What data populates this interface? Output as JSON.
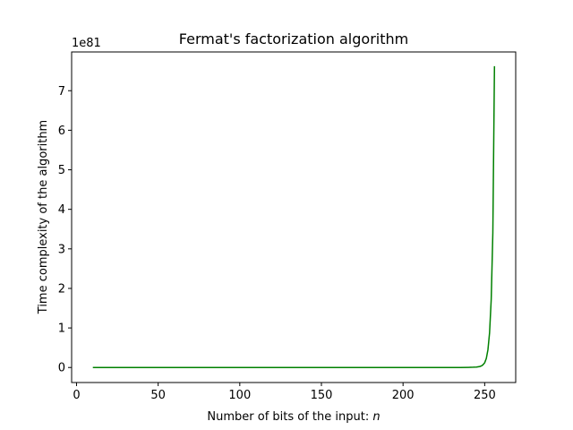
{
  "chart_data": {
    "type": "line",
    "title": "Fermat's factorization algorithm",
    "xlabel_text": "Number of bits of the input: ",
    "xlabel_var": "n",
    "ylabel": "Time complexity of the algorithm",
    "y_offset_label": "1e81",
    "xlim": [
      -3,
      269
    ],
    "ylim": [
      -0.38,
      7.98
    ],
    "x_ticks": [
      0,
      50,
      100,
      150,
      200,
      250
    ],
    "x_tick_labels": [
      "0",
      "50",
      "100",
      "150",
      "200",
      "250"
    ],
    "y_ticks": [
      0,
      1,
      2,
      3,
      4,
      5,
      6,
      7
    ],
    "y_tick_labels": [
      "0",
      "1",
      "2",
      "3",
      "4",
      "5",
      "6",
      "7"
    ],
    "grid": false,
    "series": [
      {
        "color": "#008000",
        "x": [
          10,
          20,
          40,
          60,
          80,
          100,
          120,
          140,
          160,
          180,
          200,
          220,
          230,
          235,
          240,
          243,
          245,
          247,
          248,
          249,
          250,
          251,
          252,
          253,
          254,
          255,
          256
        ],
        "y": [
          0,
          0,
          0,
          0,
          0,
          0,
          0,
          0,
          0,
          0,
          0,
          0,
          0,
          0.0005,
          0.003,
          0.007,
          0.012,
          0.025,
          0.04,
          0.07,
          0.12,
          0.23,
          0.45,
          0.88,
          1.72,
          3.4,
          7.62
        ]
      }
    ]
  }
}
